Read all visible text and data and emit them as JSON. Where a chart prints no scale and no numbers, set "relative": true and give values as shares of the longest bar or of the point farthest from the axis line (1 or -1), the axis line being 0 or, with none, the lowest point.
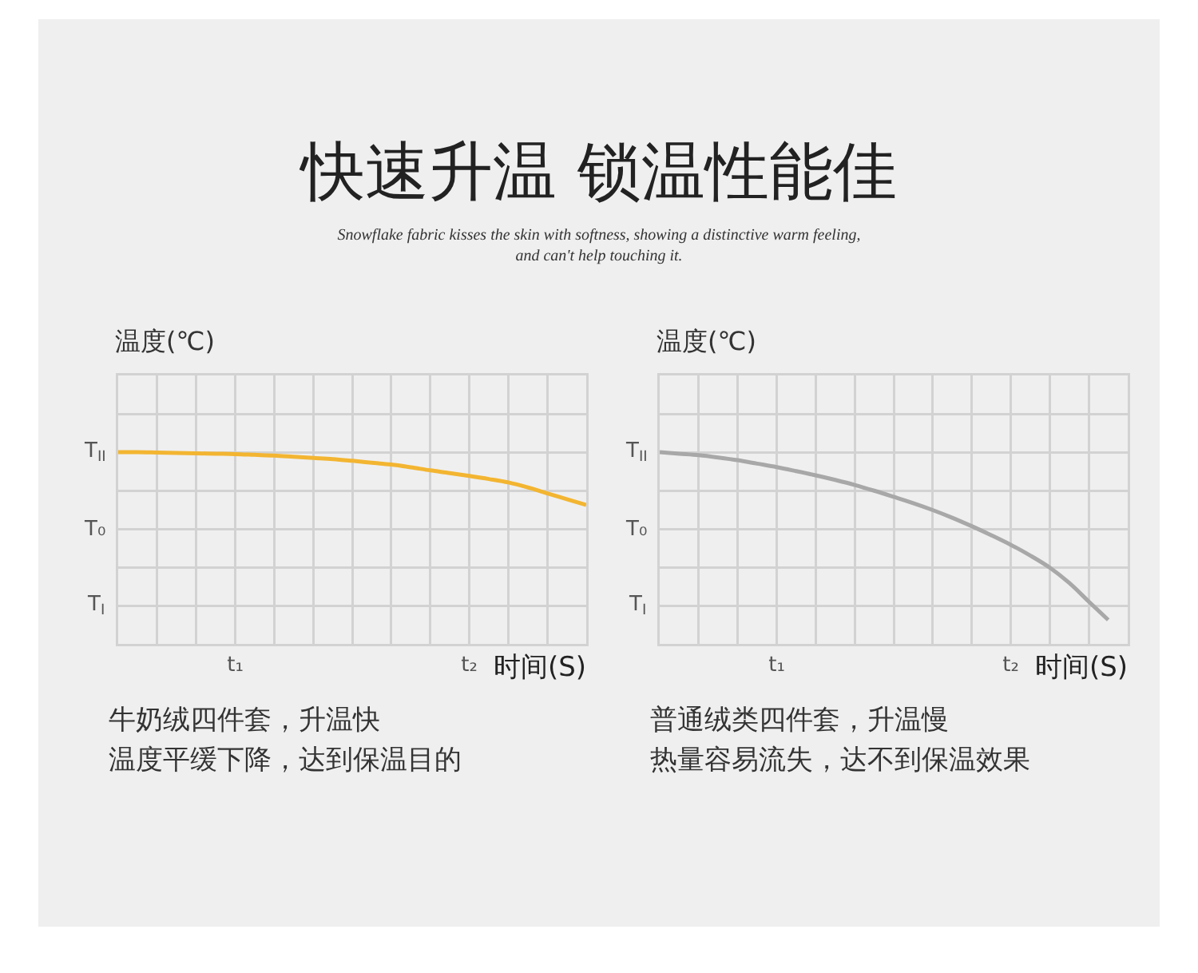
{
  "chart_data": [
    {
      "type": "other",
      "title": "快速升温 锁温性能佳",
      "subtitle": "Snowflake fabric kisses the skin with softness, showing a distinctive warm feeling, and can't help touching it."
    },
    {
      "type": "line",
      "relative": true,
      "ylabel": "温度(℃)",
      "xlabel": "时间(S)",
      "grid": true,
      "categories": [
        null,
        null,
        null,
        null,
        null,
        null,
        "t₁",
        null,
        null,
        null,
        null,
        null,
        null,
        null,
        null,
        null,
        null,
        null,
        "t₂",
        null,
        null,
        null,
        null,
        null,
        null
      ],
      "series": [
        {
          "color": "#f3b531",
          "values": [
            1,
            1,
            0.998,
            0.996,
            0.994,
            0.992,
            0.99,
            0.986,
            0.982,
            0.976,
            0.97,
            0.964,
            0.955,
            0.945,
            0.935,
            0.921,
            0.905,
            0.891,
            0.876,
            0.86,
            0.842,
            0.816,
            0.785,
            0.755,
            0.725
          ]
        }
      ],
      "annotations": [
        "T$_{II}$",
        "T₀",
        "T$_{I}$",
        "牛奶绒四件套，升温快",
        "温度平缓下降，达到保温目的"
      ]
    },
    {
      "type": "line",
      "relative": true,
      "ylabel": "温度(℃)",
      "xlabel": "时间(S)",
      "grid": true,
      "categories": [
        null,
        null,
        null,
        null,
        null,
        null,
        "t₁",
        null,
        null,
        null,
        null,
        null,
        null,
        null,
        null,
        null,
        null,
        null,
        "t₂",
        null,
        null,
        null,
        null,
        null,
        null
      ],
      "series": [
        {
          "color": "#a8a8a8",
          "values": [
            1,
            0.992,
            0.984,
            0.972,
            0.958,
            0.94,
            0.922,
            0.901,
            0.879,
            0.855,
            0.829,
            0.799,
            0.767,
            0.734,
            0.698,
            0.658,
            0.614,
            0.567,
            0.517,
            0.461,
            0.398,
            0.318,
            0.221,
            0.125,
            null
          ]
        }
      ],
      "annotations": [
        "T$_{II}$",
        "T₀",
        "T$_{I}$",
        "普通绒类四件套，升温慢",
        "热量容易流失，达不到保温效果"
      ]
    }
  ]
}
